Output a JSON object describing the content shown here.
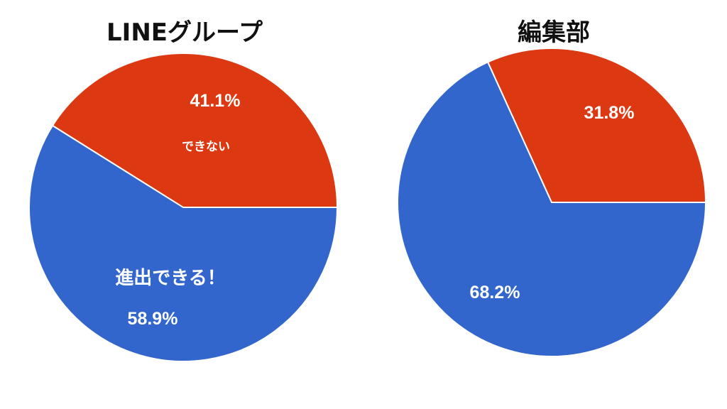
{
  "chart_data": [
    {
      "type": "pie",
      "title": "LINEグループ",
      "slices": [
        {
          "label": "できない",
          "value": 41.1,
          "value_label": "41.1%",
          "color": "#DC3912"
        },
        {
          "label": "進出できる！",
          "value": 58.9,
          "value_label": "58.9%",
          "color": "#3366CC"
        }
      ],
      "legend": "none"
    },
    {
      "type": "pie",
      "title": "編集部",
      "slices": [
        {
          "label": "",
          "value": 31.8,
          "value_label": "31.8%",
          "color": "#DC3912"
        },
        {
          "label": "",
          "value": 68.2,
          "value_label": "68.2%",
          "color": "#3366CC"
        }
      ],
      "legend": "none"
    }
  ]
}
